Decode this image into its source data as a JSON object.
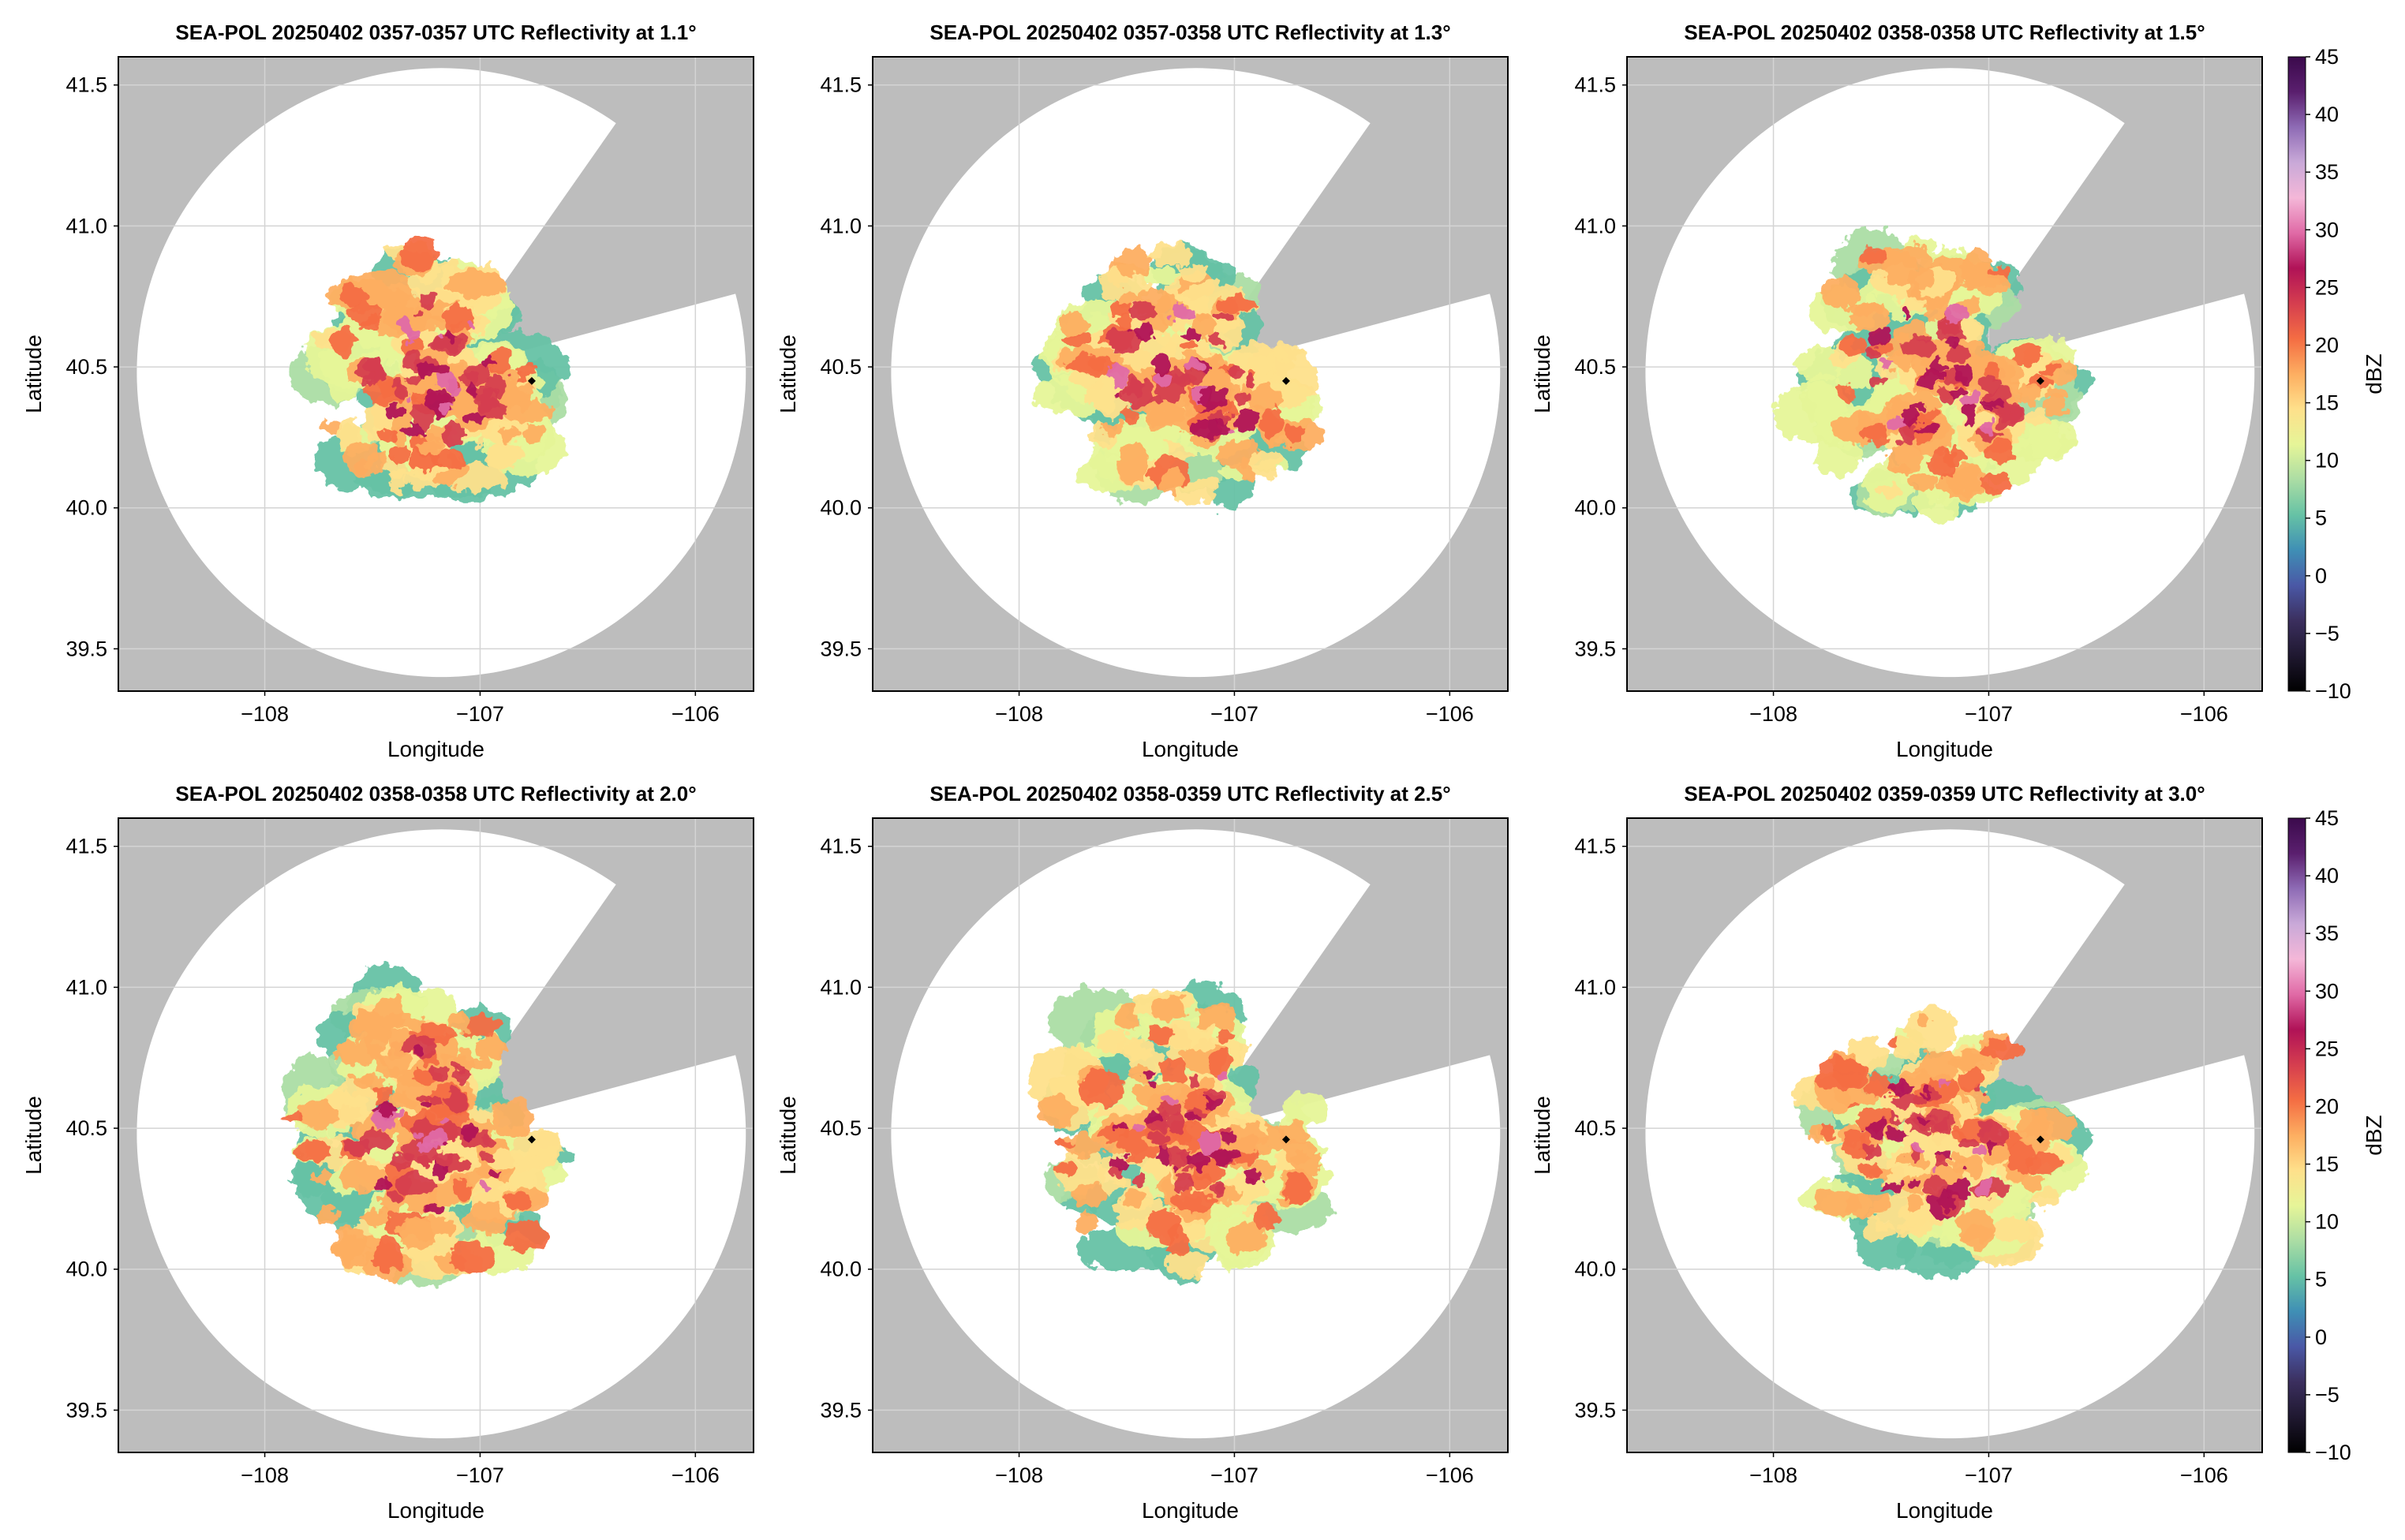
{
  "chart_data": [
    {
      "type": "heatmap",
      "title": "SEA-POL 20250402 0357-0357 UTC Reflectivity at 1.1°",
      "xlabel": "Longitude",
      "ylabel": "Latitude",
      "xlim": [
        -108.68,
        -105.73
      ],
      "ylim": [
        39.35,
        41.6
      ],
      "xticks": [
        -108,
        -107,
        -106
      ],
      "xtick_labels": [
        "−108",
        "−107",
        "−106"
      ],
      "yticks": [
        39.5,
        40.0,
        40.5,
        41.0,
        41.5
      ],
      "ytick_labels": [
        "39.5",
        "40.0",
        "40.5",
        "41.0",
        "41.5"
      ],
      "grid": true,
      "radar_center": [
        -107.18,
        40.48
      ],
      "blocked_sector_deg": [
        15,
        55
      ],
      "marker": [
        -106.76,
        40.45
      ],
      "echo_extent": 0.85
    },
    {
      "type": "heatmap",
      "title": "SEA-POL 20250402 0357-0358 UTC Reflectivity at 1.3°",
      "xlabel": "Longitude",
      "ylabel": "Latitude",
      "xlim": [
        -108.68,
        -105.73
      ],
      "ylim": [
        39.35,
        41.6
      ],
      "xticks": [
        -108,
        -107,
        -106
      ],
      "xtick_labels": [
        "−108",
        "−107",
        "−106"
      ],
      "yticks": [
        39.5,
        40.0,
        40.5,
        41.0,
        41.5
      ],
      "ytick_labels": [
        "39.5",
        "40.0",
        "40.5",
        "41.0",
        "41.5"
      ],
      "grid": true,
      "radar_center": [
        -107.18,
        40.48
      ],
      "blocked_sector_deg": [
        15,
        55
      ],
      "marker": [
        -106.76,
        40.45
      ],
      "echo_extent": 0.9
    },
    {
      "type": "heatmap",
      "title": "SEA-POL 20250402 0358-0358 UTC Reflectivity at 1.5°",
      "xlabel": "Longitude",
      "ylabel": "Latitude",
      "xlim": [
        -108.68,
        -105.73
      ],
      "ylim": [
        39.35,
        41.6
      ],
      "xticks": [
        -108,
        -107,
        -106
      ],
      "xtick_labels": [
        "−108",
        "−107",
        "−106"
      ],
      "yticks": [
        39.5,
        40.0,
        40.5,
        41.0,
        41.5
      ],
      "ytick_labels": [
        "39.5",
        "40.0",
        "40.5",
        "41.0",
        "41.5"
      ],
      "grid": true,
      "radar_center": [
        -107.18,
        40.48
      ],
      "blocked_sector_deg": [
        15,
        55
      ],
      "marker": [
        -106.76,
        40.45
      ],
      "echo_extent": 0.95
    },
    {
      "type": "heatmap",
      "title": "SEA-POL 20250402 0358-0358 UTC Reflectivity at 2.0°",
      "xlabel": "Longitude",
      "ylabel": "Latitude",
      "xlim": [
        -108.68,
        -105.73
      ],
      "ylim": [
        39.35,
        41.6
      ],
      "xticks": [
        -108,
        -107,
        -106
      ],
      "xtick_labels": [
        "−108",
        "−107",
        "−106"
      ],
      "yticks": [
        39.5,
        40.0,
        40.5,
        41.0,
        41.5
      ],
      "ytick_labels": [
        "39.5",
        "40.0",
        "40.5",
        "41.0",
        "41.5"
      ],
      "grid": true,
      "radar_center": [
        -107.18,
        40.48
      ],
      "blocked_sector_deg": [
        15,
        55
      ],
      "marker": [
        -106.76,
        40.46
      ],
      "echo_extent": 1.0
    },
    {
      "type": "heatmap",
      "title": "SEA-POL 20250402 0358-0359 UTC Reflectivity at 2.5°",
      "xlabel": "Longitude",
      "ylabel": "Latitude",
      "xlim": [
        -108.68,
        -105.73
      ],
      "ylim": [
        39.35,
        41.6
      ],
      "xticks": [
        -108,
        -107,
        -106
      ],
      "xtick_labels": [
        "−108",
        "−107",
        "−106"
      ],
      "yticks": [
        39.5,
        40.0,
        40.5,
        41.0,
        41.5
      ],
      "ytick_labels": [
        "39.5",
        "40.0",
        "40.5",
        "41.0",
        "41.5"
      ],
      "grid": true,
      "radar_center": [
        -107.18,
        40.48
      ],
      "blocked_sector_deg": [
        15,
        55
      ],
      "marker": [
        -106.76,
        40.46
      ],
      "echo_extent": 1.0
    },
    {
      "type": "heatmap",
      "title": "SEA-POL 20250402 0359-0359 UTC Reflectivity at 3.0°",
      "xlabel": "Longitude",
      "ylabel": "Latitude",
      "xlim": [
        -108.68,
        -105.73
      ],
      "ylim": [
        39.35,
        41.6
      ],
      "xticks": [
        -108,
        -107,
        -106
      ],
      "xtick_labels": [
        "−108",
        "−107",
        "−106"
      ],
      "yticks": [
        39.5,
        40.0,
        40.5,
        41.0,
        41.5
      ],
      "ytick_labels": [
        "39.5",
        "40.0",
        "40.5",
        "41.0",
        "41.5"
      ],
      "grid": true,
      "radar_center": [
        -107.18,
        40.48
      ],
      "blocked_sector_deg": [
        15,
        55
      ],
      "marker": [
        -106.76,
        40.46
      ],
      "echo_extent": 0.9
    }
  ],
  "colorbar": {
    "label": "dBZ",
    "min": -10,
    "max": 45,
    "ticks": [
      -10,
      -5,
      0,
      5,
      10,
      15,
      20,
      25,
      30,
      35,
      40,
      45
    ],
    "tick_labels": [
      "−10",
      "−5",
      "0",
      "5",
      "10",
      "15",
      "20",
      "25",
      "30",
      "35",
      "40",
      "45"
    ],
    "colors": [
      "#000000",
      "#1f1830",
      "#3b2f5e",
      "#4a58a6",
      "#3f8fb5",
      "#66c2a5",
      "#abdda4",
      "#e6f598",
      "#fee08b",
      "#fdae61",
      "#f46d43",
      "#d53e4f",
      "#b01257",
      "#e06aa6",
      "#f4b7d8",
      "#c9a9d8",
      "#8e6bb5",
      "#5a1f6e",
      "#3b0a4c"
    ]
  },
  "styles": {
    "no_data_color": "#bdbdbd",
    "scanned_color": "#ffffff",
    "marker_color": "#000000"
  }
}
